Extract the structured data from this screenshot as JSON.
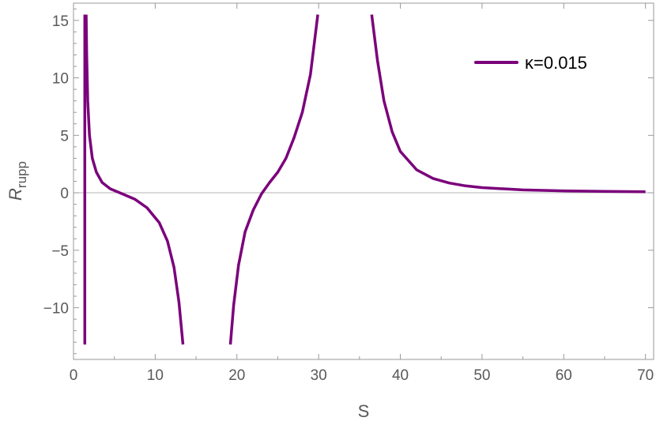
{
  "chart_data": {
    "type": "line",
    "title": "",
    "xlabel": "S",
    "ylabel_main": "R",
    "ylabel_sub": "rupp",
    "xlim": [
      0,
      71
    ],
    "ylim": [
      -14.5,
      16.5
    ],
    "x_ticks": [
      0,
      10,
      20,
      30,
      40,
      50,
      60,
      70
    ],
    "x_tick_labels": [
      "0",
      "10",
      "20",
      "30",
      "40",
      "50",
      "60",
      "70"
    ],
    "y_ticks": [
      -10,
      -5,
      0,
      5,
      10,
      15
    ],
    "y_tick_labels": [
      "−10",
      "−5",
      "0",
      "5",
      "10",
      "15"
    ],
    "grid": false,
    "zero_line": true,
    "legend_position": "top-right",
    "series": [
      {
        "name": "κ=0.015",
        "color": "#7b017b",
        "segments": [
          [
            [
              1.38,
              -13.2
            ],
            [
              1.38,
              15.5
            ]
          ],
          [
            [
              1.55,
              15.5
            ],
            [
              1.62,
              12.0
            ],
            [
              1.74,
              8.0
            ],
            [
              1.95,
              5.0
            ],
            [
              2.3,
              3.0
            ],
            [
              2.8,
              1.8
            ],
            [
              3.5,
              0.9
            ],
            [
              4.5,
              0.35
            ],
            [
              6.0,
              -0.1
            ],
            [
              7.5,
              -0.55
            ],
            [
              9.0,
              -1.3
            ],
            [
              10.5,
              -2.6
            ],
            [
              11.5,
              -4.2
            ],
            [
              12.3,
              -6.5
            ],
            [
              12.9,
              -9.5
            ],
            [
              13.4,
              -13.2
            ]
          ],
          [
            [
              19.2,
              -13.2
            ],
            [
              19.6,
              -9.8
            ],
            [
              20.2,
              -6.3
            ],
            [
              21.0,
              -3.4
            ],
            [
              22.0,
              -1.5
            ],
            [
              23.0,
              -0.1
            ],
            [
              24.0,
              0.9
            ],
            [
              25.0,
              1.8
            ],
            [
              26.0,
              3.0
            ],
            [
              27.0,
              4.8
            ],
            [
              28.0,
              7.0
            ],
            [
              29.0,
              10.3
            ],
            [
              29.9,
              15.5
            ]
          ],
          [
            [
              36.5,
              15.5
            ],
            [
              37.2,
              11.5
            ],
            [
              38.0,
              8.0
            ],
            [
              39.0,
              5.3
            ],
            [
              40.0,
              3.6
            ],
            [
              42.0,
              2.0
            ],
            [
              44.0,
              1.25
            ],
            [
              46.0,
              0.85
            ],
            [
              48.0,
              0.6
            ],
            [
              50.0,
              0.45
            ],
            [
              55.0,
              0.25
            ],
            [
              60.0,
              0.17
            ],
            [
              65.0,
              0.12
            ],
            [
              70.0,
              0.09
            ]
          ]
        ]
      }
    ]
  }
}
